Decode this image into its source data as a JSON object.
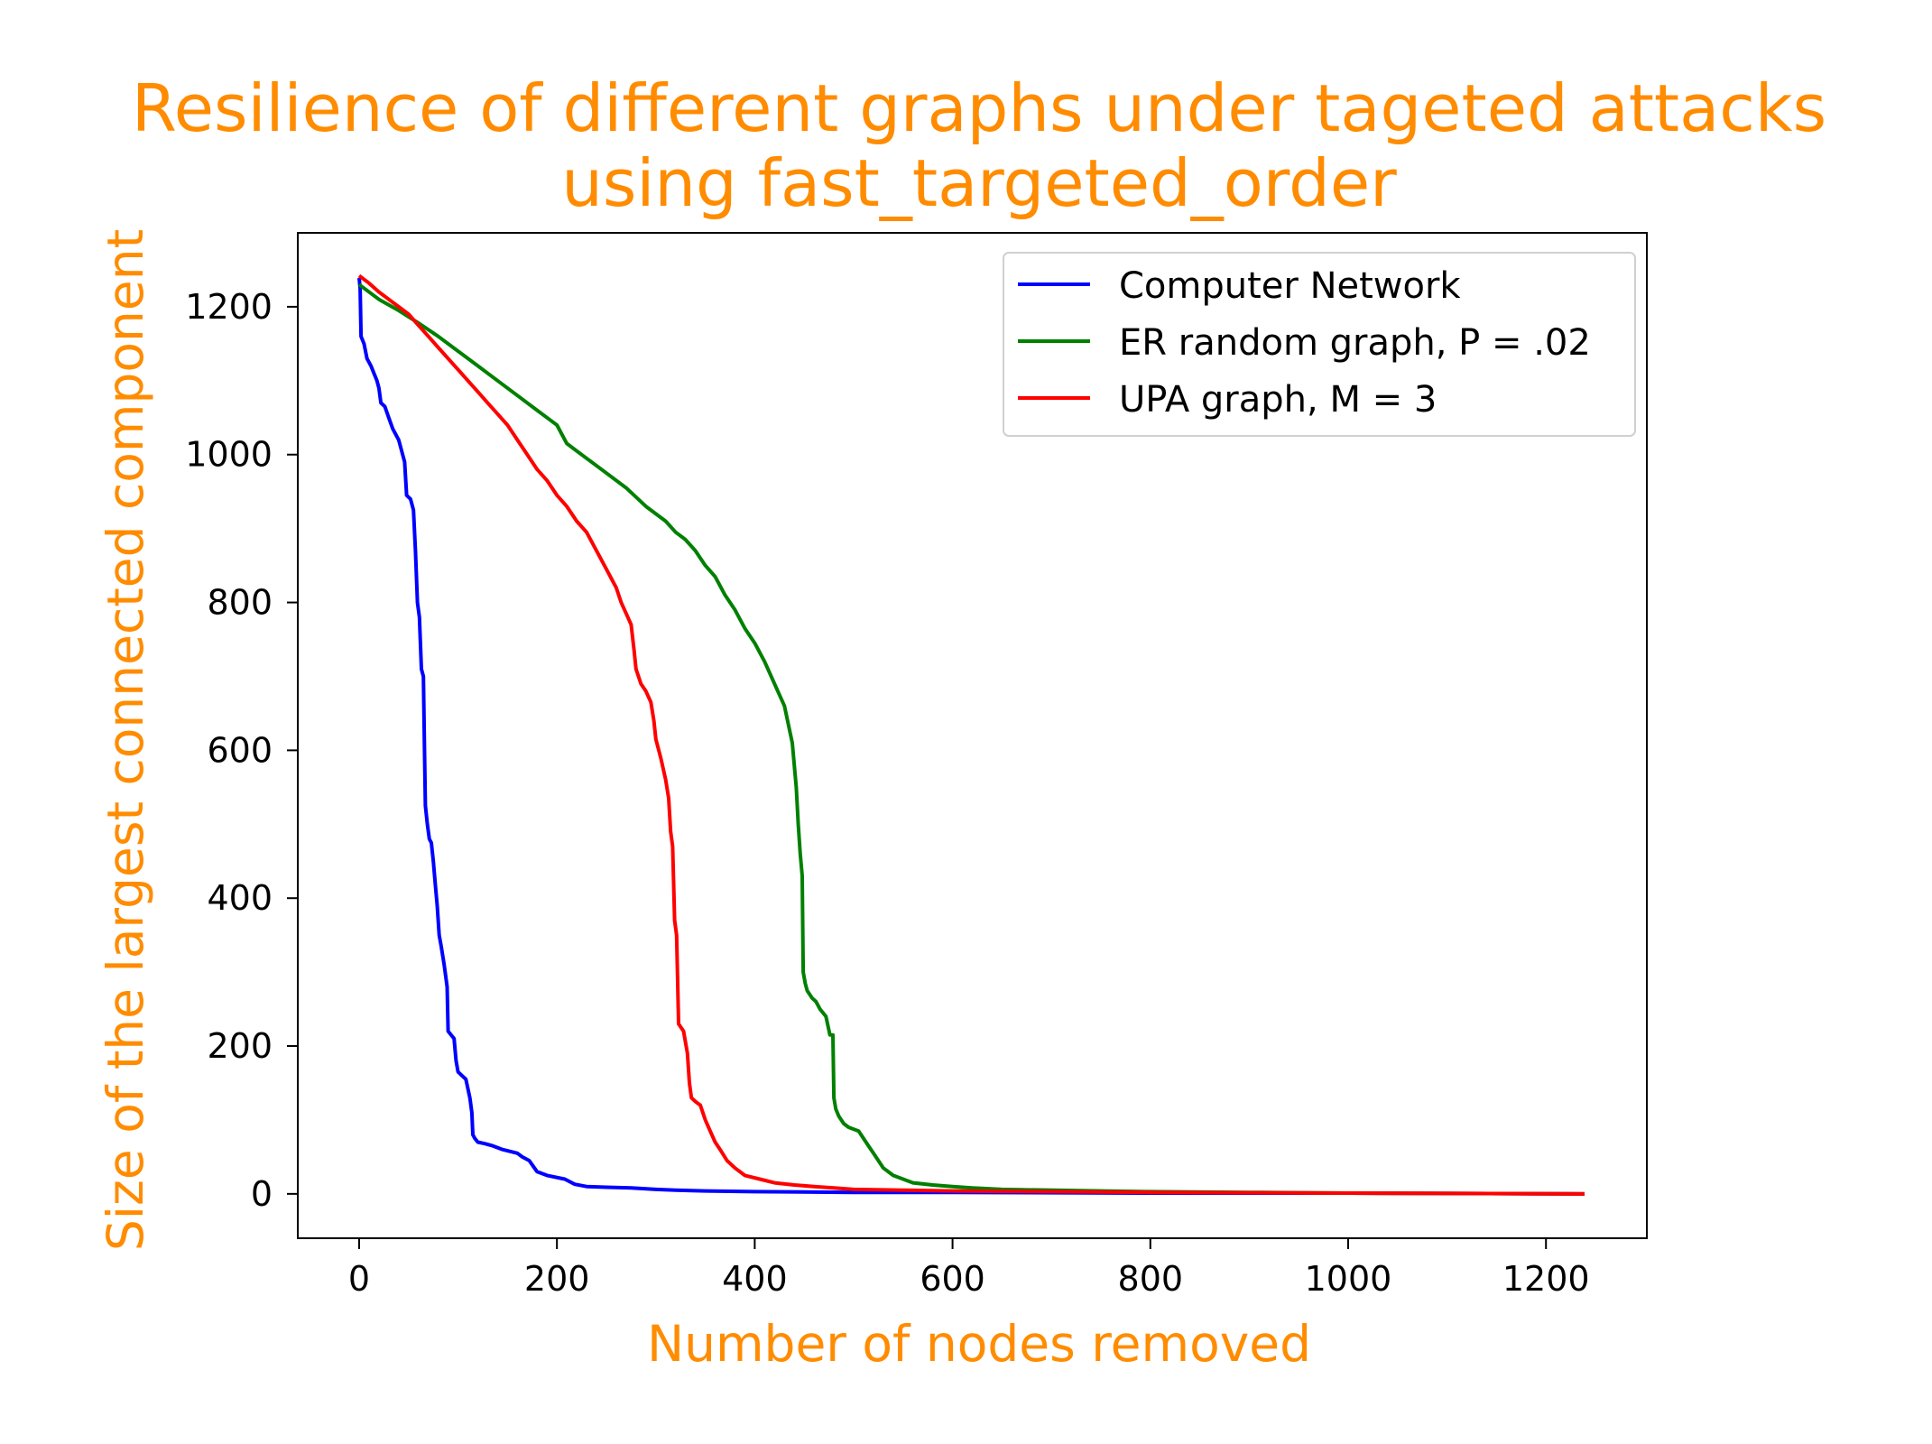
{
  "chart_data": {
    "type": "line",
    "title": [
      "Resilience of different graphs under tageted attacks",
      "using fast_targeted_order"
    ],
    "xlabel": "Number of nodes removed",
    "ylabel": "Size of the largest connected component",
    "xlim": [
      -62,
      1302
    ],
    "ylim": [
      -60,
      1300
    ],
    "xticks": [
      0,
      200,
      400,
      600,
      800,
      1000,
      1200
    ],
    "yticks": [
      0,
      200,
      400,
      600,
      800,
      1000,
      1200
    ],
    "grid": false,
    "legend_position": "top-right",
    "series": [
      {
        "name": "Computer Network",
        "color": "#0000ff",
        "points": [
          [
            0,
            1239
          ],
          [
            1,
            1225
          ],
          [
            2,
            1160
          ],
          [
            5,
            1150
          ],
          [
            8,
            1130
          ],
          [
            12,
            1120
          ],
          [
            15,
            1110
          ],
          [
            18,
            1100
          ],
          [
            20,
            1090
          ],
          [
            22,
            1070
          ],
          [
            26,
            1065
          ],
          [
            30,
            1050
          ],
          [
            34,
            1035
          ],
          [
            38,
            1025
          ],
          [
            40,
            1020
          ],
          [
            43,
            1005
          ],
          [
            46,
            990
          ],
          [
            48,
            945
          ],
          [
            52,
            940
          ],
          [
            55,
            925
          ],
          [
            57,
            870
          ],
          [
            59,
            800
          ],
          [
            61,
            780
          ],
          [
            63,
            710
          ],
          [
            65,
            700
          ],
          [
            66,
            610
          ],
          [
            67,
            525
          ],
          [
            69,
            500
          ],
          [
            71,
            480
          ],
          [
            73,
            475
          ],
          [
            75,
            450
          ],
          [
            77,
            420
          ],
          [
            79,
            390
          ],
          [
            81,
            350
          ],
          [
            83,
            335
          ],
          [
            86,
            310
          ],
          [
            89,
            280
          ],
          [
            90,
            220
          ],
          [
            93,
            215
          ],
          [
            96,
            210
          ],
          [
            98,
            180
          ],
          [
            100,
            165
          ],
          [
            104,
            160
          ],
          [
            108,
            155
          ],
          [
            112,
            130
          ],
          [
            114,
            110
          ],
          [
            115,
            80
          ],
          [
            117,
            75
          ],
          [
            120,
            70
          ],
          [
            127,
            68
          ],
          [
            135,
            65
          ],
          [
            145,
            60
          ],
          [
            160,
            55
          ],
          [
            165,
            50
          ],
          [
            172,
            45
          ],
          [
            180,
            30
          ],
          [
            190,
            25
          ],
          [
            208,
            20
          ],
          [
            218,
            13
          ],
          [
            230,
            10
          ],
          [
            250,
            9
          ],
          [
            275,
            8
          ],
          [
            300,
            6
          ],
          [
            320,
            5
          ],
          [
            350,
            4
          ],
          [
            400,
            3
          ],
          [
            500,
            2
          ],
          [
            600,
            2
          ],
          [
            800,
            1
          ],
          [
            1000,
            1
          ],
          [
            1239,
            0
          ]
        ]
      },
      {
        "name": "ER random graph, P = .02",
        "color": "#008000",
        "points": [
          [
            0,
            1230
          ],
          [
            20,
            1210
          ],
          [
            40,
            1195
          ],
          [
            60,
            1178
          ],
          [
            80,
            1160
          ],
          [
            100,
            1140
          ],
          [
            120,
            1120
          ],
          [
            140,
            1100
          ],
          [
            160,
            1080
          ],
          [
            180,
            1060
          ],
          [
            190,
            1050
          ],
          [
            200,
            1040
          ],
          [
            210,
            1015
          ],
          [
            230,
            995
          ],
          [
            250,
            975
          ],
          [
            270,
            955
          ],
          [
            290,
            930
          ],
          [
            310,
            910
          ],
          [
            320,
            895
          ],
          [
            330,
            885
          ],
          [
            340,
            870
          ],
          [
            350,
            850
          ],
          [
            360,
            835
          ],
          [
            370,
            810
          ],
          [
            380,
            790
          ],
          [
            390,
            765
          ],
          [
            400,
            745
          ],
          [
            410,
            720
          ],
          [
            420,
            690
          ],
          [
            430,
            660
          ],
          [
            438,
            610
          ],
          [
            440,
            580
          ],
          [
            442,
            550
          ],
          [
            444,
            500
          ],
          [
            446,
            460
          ],
          [
            448,
            430
          ],
          [
            449,
            300
          ],
          [
            451,
            285
          ],
          [
            453,
            275
          ],
          [
            458,
            265
          ],
          [
            462,
            260
          ],
          [
            466,
            250
          ],
          [
            472,
            240
          ],
          [
            476,
            215
          ],
          [
            479,
            215
          ],
          [
            480,
            130
          ],
          [
            482,
            115
          ],
          [
            485,
            105
          ],
          [
            490,
            95
          ],
          [
            495,
            90
          ],
          [
            505,
            85
          ],
          [
            510,
            75
          ],
          [
            515,
            65
          ],
          [
            520,
            55
          ],
          [
            525,
            45
          ],
          [
            530,
            35
          ],
          [
            540,
            25
          ],
          [
            550,
            20
          ],
          [
            560,
            15
          ],
          [
            580,
            12
          ],
          [
            600,
            10
          ],
          [
            620,
            8
          ],
          [
            650,
            6
          ],
          [
            700,
            5
          ],
          [
            750,
            4
          ],
          [
            800,
            3
          ],
          [
            900,
            2
          ],
          [
            1000,
            1
          ],
          [
            1239,
            0
          ]
        ]
      },
      {
        "name": "UPA graph, M = 3",
        "color": "#ff0000",
        "points": [
          [
            0,
            1242
          ],
          [
            10,
            1232
          ],
          [
            20,
            1220
          ],
          [
            30,
            1210
          ],
          [
            40,
            1200
          ],
          [
            50,
            1190
          ],
          [
            60,
            1175
          ],
          [
            70,
            1160
          ],
          [
            80,
            1145
          ],
          [
            90,
            1130
          ],
          [
            100,
            1115
          ],
          [
            110,
            1100
          ],
          [
            120,
            1085
          ],
          [
            130,
            1070
          ],
          [
            140,
            1055
          ],
          [
            150,
            1040
          ],
          [
            160,
            1020
          ],
          [
            170,
            1000
          ],
          [
            180,
            980
          ],
          [
            190,
            965
          ],
          [
            200,
            945
          ],
          [
            210,
            930
          ],
          [
            220,
            910
          ],
          [
            230,
            895
          ],
          [
            240,
            870
          ],
          [
            250,
            845
          ],
          [
            260,
            820
          ],
          [
            265,
            800
          ],
          [
            270,
            785
          ],
          [
            275,
            770
          ],
          [
            278,
            735
          ],
          [
            280,
            710
          ],
          [
            285,
            690
          ],
          [
            290,
            680
          ],
          [
            295,
            665
          ],
          [
            298,
            640
          ],
          [
            300,
            615
          ],
          [
            305,
            590
          ],
          [
            310,
            560
          ],
          [
            313,
            535
          ],
          [
            315,
            490
          ],
          [
            317,
            470
          ],
          [
            319,
            370
          ],
          [
            321,
            350
          ],
          [
            323,
            230
          ],
          [
            328,
            220
          ],
          [
            332,
            190
          ],
          [
            334,
            150
          ],
          [
            336,
            130
          ],
          [
            340,
            125
          ],
          [
            345,
            120
          ],
          [
            350,
            100
          ],
          [
            355,
            85
          ],
          [
            360,
            70
          ],
          [
            365,
            60
          ],
          [
            372,
            45
          ],
          [
            380,
            35
          ],
          [
            390,
            25
          ],
          [
            405,
            20
          ],
          [
            420,
            15
          ],
          [
            440,
            12
          ],
          [
            460,
            10
          ],
          [
            480,
            8
          ],
          [
            500,
            6
          ],
          [
            550,
            5
          ],
          [
            600,
            4
          ],
          [
            700,
            3
          ],
          [
            800,
            2
          ],
          [
            1000,
            1
          ],
          [
            1239,
            0
          ]
        ]
      }
    ]
  }
}
